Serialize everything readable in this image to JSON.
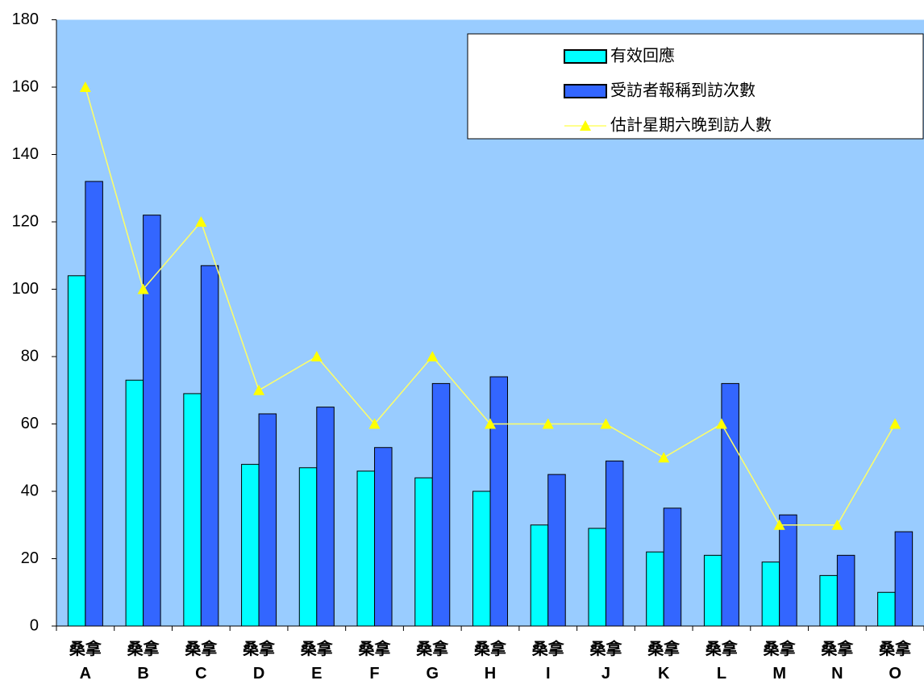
{
  "chart_data": {
    "type": "bar",
    "categories": [
      "桑拿\nA",
      "桑拿\nB",
      "桑拿\nC",
      "桑拿\nD",
      "桑拿\nE",
      "桑拿\nF",
      "桑拿\nG",
      "桑拿\nH",
      "桑拿\nI",
      "桑拿\nJ",
      "桑拿\nK",
      "桑拿\nL",
      "桑拿\nM",
      "桑拿\nN",
      "桑拿\nO"
    ],
    "series": [
      {
        "name": "有效回應",
        "type": "bar",
        "color": "#00ffff",
        "values": [
          104,
          73,
          69,
          48,
          47,
          46,
          44,
          40,
          30,
          29,
          22,
          21,
          19,
          15,
          10
        ]
      },
      {
        "name": "受訪者報稱到訪次數",
        "type": "bar",
        "color": "#3366ff",
        "values": [
          132,
          122,
          107,
          63,
          65,
          53,
          72,
          74,
          45,
          49,
          35,
          72,
          33,
          21,
          28
        ]
      },
      {
        "name": "估計星期六晚到訪人數",
        "type": "line",
        "color": "#ffff00",
        "values": [
          160,
          100,
          120,
          70,
          80,
          60,
          80,
          60,
          60,
          60,
          50,
          60,
          30,
          30,
          60
        ]
      }
    ],
    "ylim": [
      0,
      180
    ],
    "yticks": [
      0,
      20,
      40,
      60,
      80,
      100,
      120,
      140,
      160,
      180
    ],
    "legend": "top-right",
    "background": "#99ccff"
  }
}
